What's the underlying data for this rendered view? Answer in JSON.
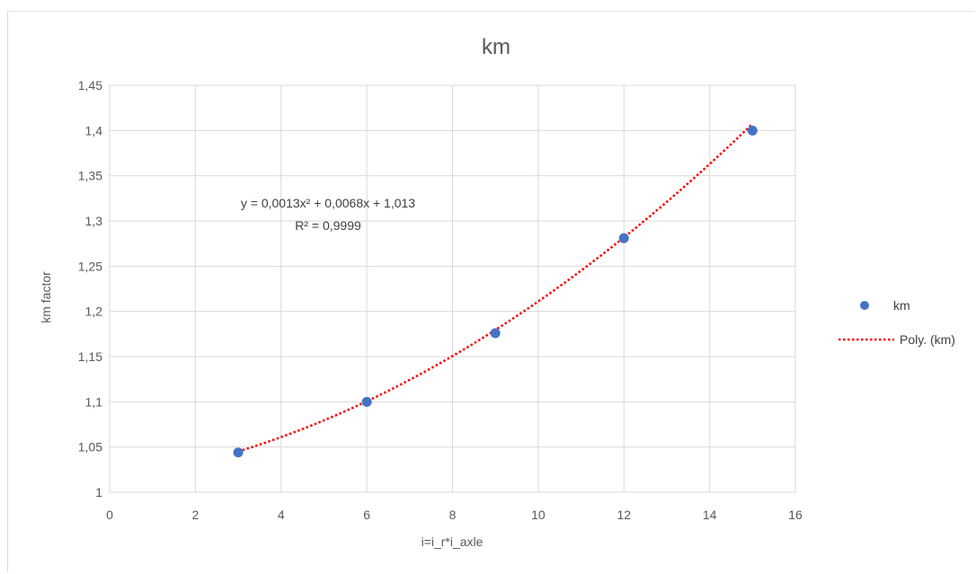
{
  "chart_data": {
    "type": "scatter",
    "title": "km",
    "xlabel": "i=i_r*i_axle",
    "ylabel": "km factor",
    "xlim": [
      0,
      16
    ],
    "ylim": [
      1,
      1.45
    ],
    "x_ticks": [
      0,
      2,
      4,
      6,
      8,
      10,
      12,
      14,
      16
    ],
    "y_ticks": [
      1,
      1.05,
      1.1,
      1.15,
      1.2,
      1.25,
      1.3,
      1.35,
      1.4,
      1.45
    ],
    "x_tick_labels": [
      "0",
      "2",
      "4",
      "6",
      "8",
      "10",
      "12",
      "14",
      "16"
    ],
    "y_tick_labels": [
      "1",
      "1,05",
      "1,1",
      "1,15",
      "1,2",
      "1,25",
      "1,3",
      "1,35",
      "1,4",
      "1,45"
    ],
    "grid": true,
    "legend_position": "right",
    "series": [
      {
        "name": "km",
        "x": [
          3,
          6,
          9,
          12,
          15
        ],
        "y": [
          1.044,
          1.1,
          1.176,
          1.281,
          1.4
        ],
        "color": "#4472c4"
      }
    ],
    "trendline": {
      "name": "Poly. (km)",
      "type": "polynomial",
      "coefficients": [
        0.0013,
        0.0068,
        1.013
      ],
      "x_range": [
        3,
        15
      ],
      "color": "#ff0000",
      "equation_label": "y = 0,0013x² + 0,0068x + 1,013",
      "r2_label": "R² = 0,9999"
    }
  }
}
